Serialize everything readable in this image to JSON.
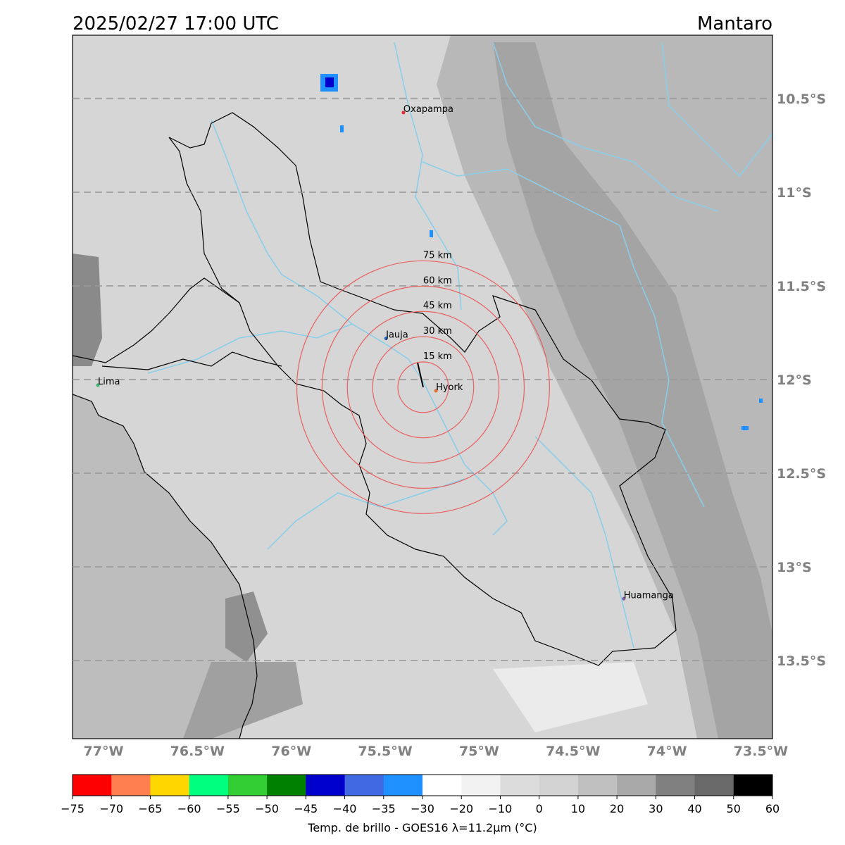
{
  "title": "2025/02/27 17:00 UTC",
  "region": "Mantaro",
  "map": {
    "xlim": [
      -77.165,
      -73.438
    ],
    "ylim": [
      -13.917,
      -10.162
    ],
    "xticks": [
      {
        "value": -77,
        "label": "77°W"
      },
      {
        "value": -76.5,
        "label": "76.5°W"
      },
      {
        "value": -76,
        "label": "76°W"
      },
      {
        "value": -75.5,
        "label": "75.5°W"
      },
      {
        "value": -75,
        "label": "75°W"
      },
      {
        "value": -74.5,
        "label": "74.5°W"
      },
      {
        "value": -74,
        "label": "74°W"
      },
      {
        "value": -73.5,
        "label": "73.5°W"
      }
    ],
    "yticks": [
      {
        "value": -10.5,
        "label": "10.5°S"
      },
      {
        "value": -11,
        "label": "11°S"
      },
      {
        "value": -11.5,
        "label": "11.5°S"
      },
      {
        "value": -12,
        "label": "12°S"
      },
      {
        "value": -12.5,
        "label": "12.5°S"
      },
      {
        "value": -13,
        "label": "13°S"
      },
      {
        "value": -13.5,
        "label": "13.5°S"
      }
    ],
    "cities": [
      {
        "name": "Oxapampa",
        "lon": -75.403,
        "lat": -10.575,
        "color": "#e03030"
      },
      {
        "name": "Lima",
        "lon": -77.03,
        "lat": -12.03,
        "color": "#3cb371"
      },
      {
        "name": "Jauja",
        "lon": -75.496,
        "lat": -11.78,
        "color": "#1e6fd0"
      },
      {
        "name": "Hyork",
        "lon": -75.23,
        "lat": -12.06,
        "color": "#e07030"
      },
      {
        "name": "Huamanga",
        "lon": -74.23,
        "lat": -13.17,
        "color": "#8060a0"
      }
    ],
    "ring_center": {
      "lon": -75.298,
      "lat": -12.041
    },
    "rings": [
      {
        "value": 15,
        "label": "15 km"
      },
      {
        "value": 30,
        "label": "30 km"
      },
      {
        "value": 45,
        "label": "45 km"
      },
      {
        "value": 60,
        "label": "60 km"
      },
      {
        "value": 75,
        "label": "75 km"
      }
    ],
    "ring_color": "#e86060"
  },
  "colorbar": {
    "label": "Temp. de brillo - GOES16 λ=11.2μm (°C)",
    "ticks": [
      {
        "value": -75,
        "label": "−75"
      },
      {
        "value": -70,
        "label": "−70"
      },
      {
        "value": -65,
        "label": "−65"
      },
      {
        "value": -60,
        "label": "−60"
      },
      {
        "value": -55,
        "label": "−55"
      },
      {
        "value": -50,
        "label": "−50"
      },
      {
        "value": -45,
        "label": "−45"
      },
      {
        "value": -40,
        "label": "−40"
      },
      {
        "value": -35,
        "label": "−35"
      },
      {
        "value": -30,
        "label": "−30"
      },
      {
        "value": -20,
        "label": "−20"
      },
      {
        "value": -10,
        "label": "−10"
      },
      0,
      10,
      20,
      30,
      40,
      50,
      60
    ],
    "colors": [
      "#ff0000",
      "#ff7f50",
      "#ffd700",
      "#00ff7f",
      "#32cd32",
      "#008000",
      "#0000cd",
      "#4169e1",
      "#1e90ff",
      "#ffffff",
      "#f2f2f2",
      "#dcdcdc",
      "#d3d3d3",
      "#c0c0c0",
      "#a9a9a9",
      "#808080",
      "#696969",
      "#000000"
    ]
  }
}
